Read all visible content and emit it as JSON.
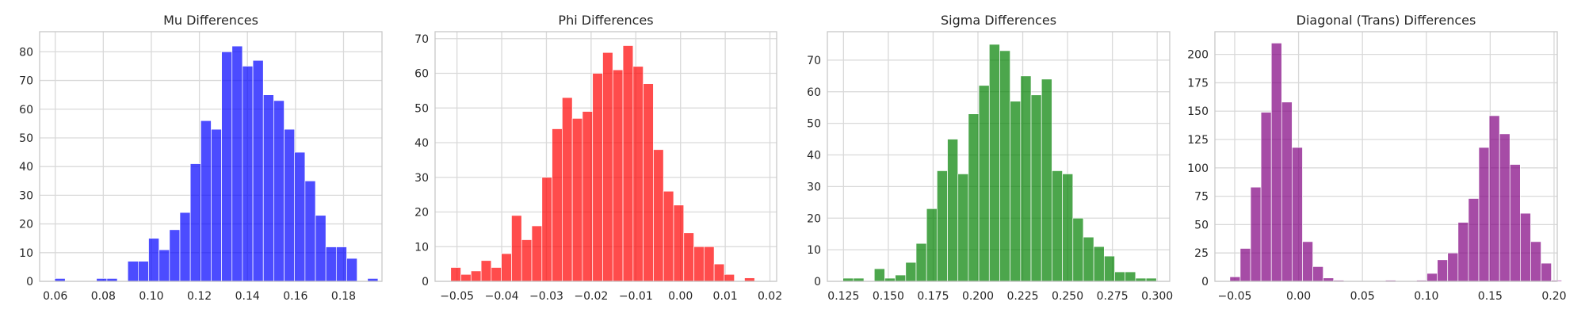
{
  "chart_data": [
    {
      "type": "bar",
      "title": "Mu Differences",
      "color": "#0000ff",
      "opacity": 0.7,
      "xlim": [
        0.0535,
        0.196
      ],
      "ylim": [
        0,
        87
      ],
      "xticks": [
        0.06,
        0.08,
        0.1,
        0.12,
        0.14,
        0.16,
        0.18
      ],
      "xticklabels": [
        "0.06",
        "0.08",
        "0.10",
        "0.12",
        "0.14",
        "0.16",
        "0.18"
      ],
      "yticks": [
        0,
        10,
        20,
        30,
        40,
        50,
        60,
        70,
        80
      ],
      "yticklabels": [
        "0",
        "10",
        "20",
        "30",
        "40",
        "50",
        "60",
        "70",
        "80"
      ],
      "bin_start": 0.0598,
      "bin_width": 0.00434,
      "values": [
        1,
        0,
        0,
        0,
        1,
        1,
        0,
        7,
        7,
        15,
        11,
        18,
        24,
        41,
        56,
        53,
        80,
        82,
        75,
        77,
        65,
        63,
        53,
        45,
        35,
        23,
        12,
        12,
        8,
        0,
        1
      ]
    },
    {
      "type": "bar",
      "title": "Phi Differences",
      "color": "#ff0000",
      "opacity": 0.7,
      "xlim": [
        -0.0549,
        0.0215
      ],
      "ylim": [
        0,
        72
      ],
      "xticks": [
        -0.05,
        -0.04,
        -0.03,
        -0.02,
        -0.01,
        0.0,
        0.01,
        0.02
      ],
      "xticklabels": [
        "−0.05",
        "−0.04",
        "−0.03",
        "−0.02",
        "−0.01",
        "0.00",
        "0.01",
        "0.02"
      ],
      "yticks": [
        0,
        10,
        20,
        30,
        40,
        50,
        60,
        70
      ],
      "yticklabels": [
        "0",
        "10",
        "20",
        "30",
        "40",
        "50",
        "60",
        "70"
      ],
      "bin_start": -0.0514,
      "bin_width": 0.002266,
      "values": [
        4,
        2,
        3,
        6,
        4,
        8,
        19,
        12,
        16,
        30,
        44,
        53,
        47,
        49,
        60,
        66,
        61,
        68,
        62,
        57,
        38,
        26,
        22,
        14,
        10,
        10,
        5,
        2,
        0,
        1
      ]
    },
    {
      "type": "bar",
      "title": "Sigma Differences",
      "color": "#008000",
      "opacity": 0.7,
      "xlim": [
        0.116,
        0.307
      ],
      "ylim": [
        0,
        79
      ],
      "xticks": [
        0.125,
        0.15,
        0.175,
        0.2,
        0.225,
        0.25,
        0.275,
        0.3
      ],
      "xticklabels": [
        "0.125",
        "0.150",
        "0.175",
        "0.200",
        "0.225",
        "0.250",
        "0.275",
        "0.300"
      ],
      "yticks": [
        0,
        10,
        20,
        30,
        40,
        50,
        60,
        70
      ],
      "yticklabels": [
        "0",
        "10",
        "20",
        "30",
        "40",
        "50",
        "60",
        "70"
      ],
      "bin_start": 0.1247,
      "bin_width": 0.00583,
      "values": [
        1,
        1,
        0,
        4,
        1,
        2,
        6,
        12,
        23,
        35,
        45,
        34,
        53,
        62,
        75,
        73,
        57,
        65,
        59,
        64,
        35,
        34,
        20,
        14,
        11,
        8,
        3,
        3,
        1,
        1
      ]
    },
    {
      "type": "bar",
      "title": "Diagonal (Trans) Differences",
      "color": "#800080",
      "opacity": 0.7,
      "xlim": [
        -0.0655,
        0.2025
      ],
      "ylim": [
        0,
        220
      ],
      "xticks": [
        -0.05,
        0.0,
        0.05,
        0.1,
        0.15,
        0.2
      ],
      "xticklabels": [
        "−0.05",
        "0.00",
        "0.05",
        "0.10",
        "0.15",
        "0.20"
      ],
      "yticks": [
        0,
        25,
        50,
        75,
        100,
        125,
        150,
        175,
        200
      ],
      "yticklabels": [
        "0",
        "25",
        "50",
        "75",
        "100",
        "125",
        "150",
        "175",
        "200"
      ],
      "bin_start": -0.0538,
      "bin_width": 0.00812,
      "values": [
        4,
        29,
        83,
        149,
        210,
        158,
        118,
        35,
        13,
        3,
        1,
        0,
        0,
        0,
        0,
        1,
        0,
        0,
        1,
        7,
        19,
        25,
        52,
        73,
        118,
        146,
        130,
        103,
        60,
        35,
        16,
        1
      ]
    }
  ]
}
